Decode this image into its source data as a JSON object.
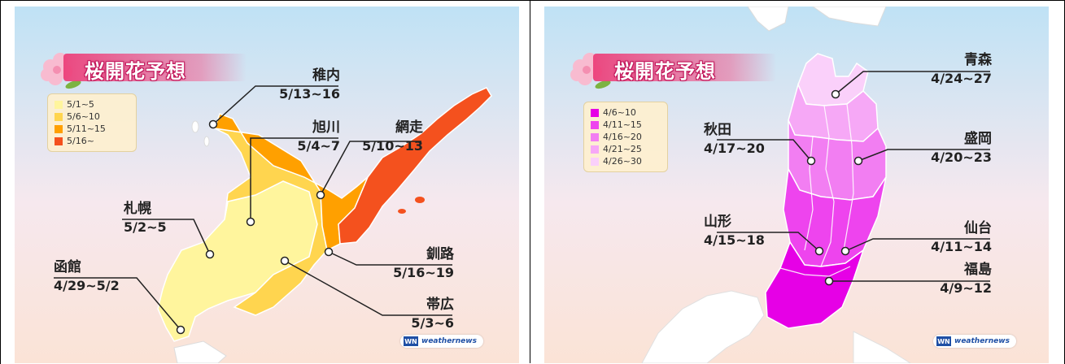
{
  "panels": [
    {
      "title": "桜開花予想",
      "legend": [
        {
          "label": "5/1~5",
          "color": "#fff59d"
        },
        {
          "label": "5/6~10",
          "color": "#ffd54f"
        },
        {
          "label": "5/11~15",
          "color": "#ffa000"
        },
        {
          "label": "5/16~",
          "color": "#f4511e"
        }
      ],
      "labels": [
        {
          "city": "稚内",
          "date": "5/13~16"
        },
        {
          "city": "旭川",
          "date": "5/4~7"
        },
        {
          "city": "網走",
          "date": "5/10~13"
        },
        {
          "city": "札幌",
          "date": "5/2~5"
        },
        {
          "city": "釧路",
          "date": "5/16~19"
        },
        {
          "city": "函館",
          "date": "4/29~5/2"
        },
        {
          "city": "帯広",
          "date": "5/3~6"
        }
      ],
      "logo_text": "weathernews",
      "logo_mark": "WN"
    },
    {
      "title": "桜開花予想",
      "legend": [
        {
          "label": "4/6~10",
          "color": "#e600e6"
        },
        {
          "label": "4/11~15",
          "color": "#ee44ee"
        },
        {
          "label": "4/16~20",
          "color": "#f27ef2"
        },
        {
          "label": "4/21~25",
          "color": "#f6a8f6"
        },
        {
          "label": "4/26~30",
          "color": "#fad0fa"
        }
      ],
      "labels": [
        {
          "city": "青森",
          "date": "4/24~27"
        },
        {
          "city": "秋田",
          "date": "4/17~20"
        },
        {
          "city": "盛岡",
          "date": "4/20~23"
        },
        {
          "city": "山形",
          "date": "4/15~18"
        },
        {
          "city": "仙台",
          "date": "4/11~14"
        },
        {
          "city": "福島",
          "date": "4/9~12"
        }
      ],
      "logo_text": "weathernews",
      "logo_mark": "WN"
    }
  ]
}
